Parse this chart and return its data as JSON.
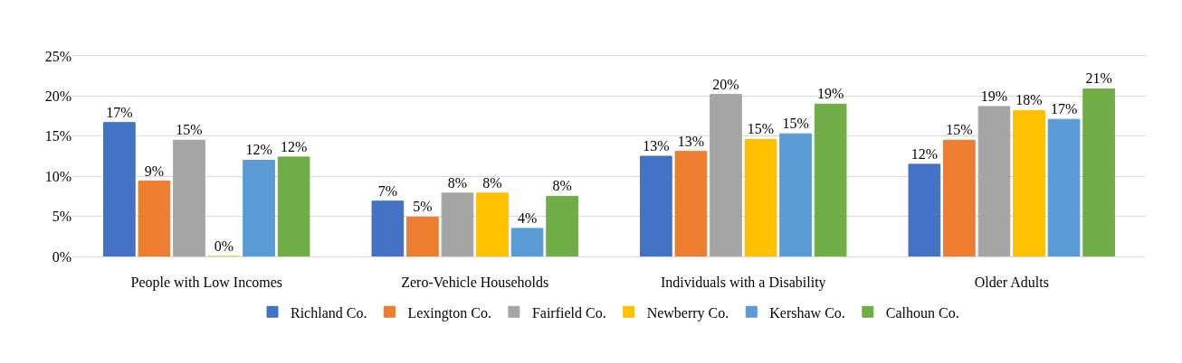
{
  "chart_data": {
    "type": "bar",
    "categories": [
      "People with Low Incomes",
      "Zero-Vehicle Households",
      "Individuals with a Disability",
      "Older Adults"
    ],
    "series": [
      {
        "name": "Richland Co.",
        "color": "#4472c4",
        "values": [
          16.7,
          6.9,
          12.5,
          11.5
        ],
        "value_labels": [
          "17%",
          "7%",
          "13%",
          "12%"
        ]
      },
      {
        "name": "Lexington Co.",
        "color": "#ed7d31",
        "values": [
          9.4,
          4.9,
          13.1,
          14.5
        ],
        "value_labels": [
          "9%",
          "5%",
          "13%",
          "15%"
        ]
      },
      {
        "name": "Fairfield Co.",
        "color": "#a5a5a5",
        "values": [
          14.5,
          7.9,
          20.2,
          18.7
        ],
        "value_labels": [
          "15%",
          "8%",
          "20%",
          "19%"
        ]
      },
      {
        "name": "Newberry Co.",
        "color": "#ffc000",
        "values": [
          0,
          7.9,
          14.6,
          18.2
        ],
        "value_labels": [
          "0%",
          "8%",
          "15%",
          "18%"
        ]
      },
      {
        "name": "Kershaw Co.",
        "color": "#5b9bd5",
        "values": [
          12.0,
          3.5,
          15.3,
          17.1
        ],
        "value_labels": [
          "12%",
          "4%",
          "15%",
          "17%"
        ]
      },
      {
        "name": "Calhoun Co.",
        "color": "#70ad47",
        "values": [
          12.4,
          7.5,
          19.0,
          20.9
        ],
        "value_labels": [
          "12%",
          "8%",
          "19%",
          "21%"
        ]
      }
    ],
    "ylim": [
      0,
      25
    ],
    "yticks": [
      {
        "value": 0,
        "label": "0%"
      },
      {
        "value": 5,
        "label": "5%"
      },
      {
        "value": 10,
        "label": "10%"
      },
      {
        "value": 15,
        "label": "15%"
      },
      {
        "value": 20,
        "label": "20%"
      },
      {
        "value": 25,
        "label": "25%"
      }
    ],
    "grid": "y",
    "legend": "bottom"
  }
}
